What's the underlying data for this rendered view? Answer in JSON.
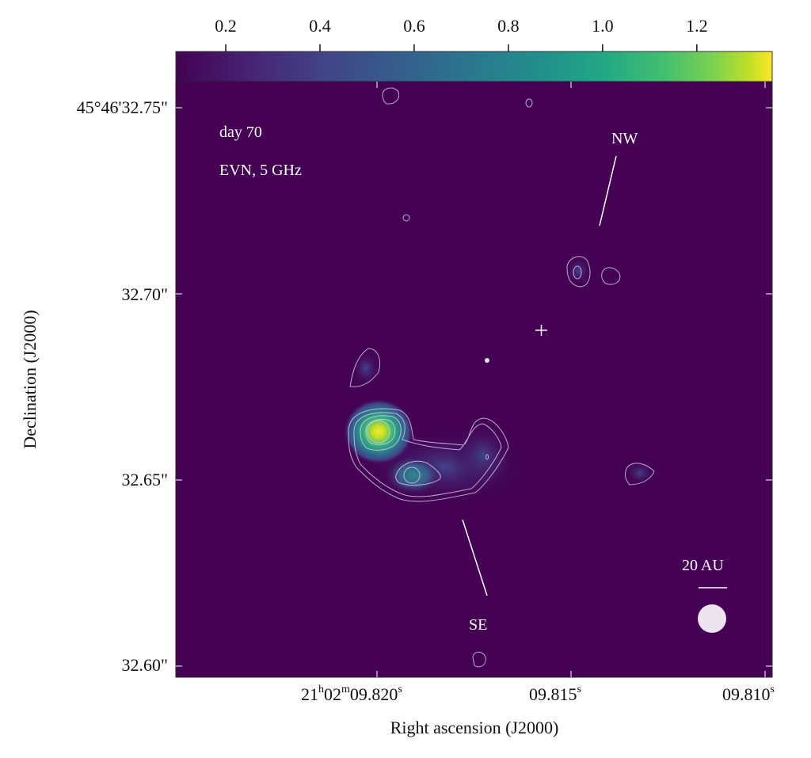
{
  "chart_data": {
    "type": "heatmap",
    "xlabel": "Right ascension (J2000)",
    "ylabel": "Declination (J2000)",
    "x_ticks": [
      {
        "h": "21",
        "m": "02",
        "s": "09.820",
        "value": 9.82
      },
      {
        "s": "09.815",
        "value": 9.815
      },
      {
        "s": "09.810",
        "value": 9.81
      }
    ],
    "y_ticks": [
      {
        "label": "45°46'32.75\"",
        "value": 32.75
      },
      {
        "label": "32.70\"",
        "value": 32.7
      },
      {
        "label": "32.65\"",
        "value": 32.65
      },
      {
        "label": "32.60\"",
        "value": 32.6
      }
    ],
    "colorbar": {
      "colormap": "viridis",
      "range": [
        0.09,
        1.36
      ],
      "ticks": [
        "0.2",
        "0.4",
        "0.6",
        "0.8",
        "1.0",
        "1.2"
      ],
      "tick_values": [
        0.2,
        0.4,
        0.6,
        0.8,
        1.0,
        1.2
      ],
      "location": "top"
    },
    "annotations": {
      "epoch": "day 70",
      "instrument": "EVN, 5 GHz",
      "nw": "NW",
      "se": "SE",
      "scale": "20 AU"
    },
    "background_color": "#440154",
    "contour_color": "#d8c8e8"
  }
}
